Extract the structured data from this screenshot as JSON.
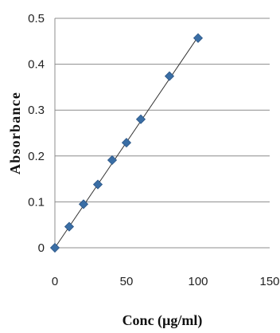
{
  "chart_data": {
    "type": "scatter",
    "title": "",
    "xlabel": "Conc (µg/ml)",
    "ylabel": "Absorbance",
    "xlim": [
      0,
      150
    ],
    "ylim": [
      0,
      0.5
    ],
    "xticks": [
      0,
      50,
      100,
      150
    ],
    "yticks": [
      0,
      0.1,
      0.2,
      0.3,
      0.4,
      0.5
    ],
    "xtick_labels": [
      "0",
      "50",
      "100",
      "150"
    ],
    "ytick_labels": [
      "0",
      "0.1",
      "0.2",
      "0.3",
      "0.4",
      "0.5"
    ],
    "grid": "horizontal",
    "legend": "none",
    "series": [
      {
        "marker": "diamond",
        "color": "#3a6ea5",
        "x": [
          0,
          10,
          20,
          30,
          40,
          50,
          60,
          80,
          100
        ],
        "y": [
          0,
          0.046,
          0.095,
          0.138,
          0.191,
          0.229,
          0.28,
          0.374,
          0.457
        ]
      }
    ],
    "trendline": {
      "color": "#333333",
      "x": [
        0,
        100
      ],
      "y": [
        0,
        0.46
      ]
    }
  }
}
